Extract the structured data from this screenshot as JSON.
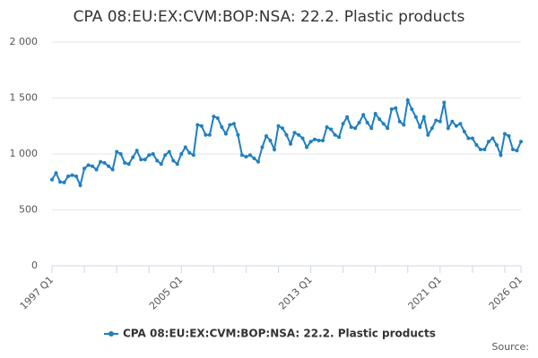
{
  "chart_data": {
    "type": "line",
    "title": "CPA 08:EU:EX:CVM:BOP:NSA: 22.2. Plastic products",
    "source": "Source:",
    "categories": [
      "1997 Q1",
      null,
      null,
      null,
      null,
      null,
      null,
      null,
      null,
      null,
      null,
      null,
      null,
      null,
      null,
      null,
      null,
      null,
      null,
      null,
      null,
      null,
      null,
      null,
      null,
      null,
      null,
      null,
      null,
      null,
      null,
      null,
      "2005 Q1",
      null,
      null,
      null,
      null,
      null,
      null,
      null,
      null,
      null,
      null,
      null,
      null,
      null,
      null,
      null,
      null,
      null,
      null,
      null,
      null,
      null,
      null,
      null,
      null,
      null,
      null,
      null,
      null,
      null,
      null,
      null,
      "2013 Q1",
      null,
      null,
      null,
      null,
      null,
      null,
      null,
      null,
      null,
      null,
      null,
      null,
      null,
      null,
      null,
      null,
      null,
      null,
      null,
      null,
      null,
      null,
      null,
      null,
      null,
      null,
      null,
      null,
      null,
      null,
      null,
      "2021 Q1",
      null,
      null,
      null,
      null,
      null,
      null,
      null,
      null,
      null,
      null,
      null,
      null,
      null,
      null,
      null,
      null,
      null,
      null,
      null,
      "2026 Q1"
    ],
    "series": [
      {
        "name": "CPA 08:EU:EX:CVM:BOP:NSA: 22.2. Plastic products",
        "color": "#1f7fc0",
        "values": [
          770,
          830,
          750,
          745,
          800,
          810,
          800,
          720,
          870,
          900,
          890,
          860,
          930,
          920,
          890,
          860,
          1020,
          1000,
          920,
          910,
          970,
          1030,
          950,
          950,
          990,
          1000,
          940,
          910,
          990,
          1020,
          940,
          910,
          1000,
          1060,
          1010,
          990,
          1260,
          1250,
          1170,
          1170,
          1335,
          1320,
          1240,
          1180,
          1260,
          1270,
          1170,
          990,
          975,
          990,
          960,
          930,
          1060,
          1160,
          1120,
          1040,
          1250,
          1230,
          1170,
          1090,
          1190,
          1170,
          1140,
          1060,
          1110,
          1130,
          1120,
          1120,
          1240,
          1220,
          1170,
          1150,
          1270,
          1330,
          1240,
          1230,
          1280,
          1350,
          1280,
          1230,
          1360,
          1310,
          1270,
          1230,
          1400,
          1410,
          1290,
          1260,
          1480,
          1400,
          1330,
          1240,
          1330,
          1170,
          1230,
          1300,
          1290,
          1460,
          1230,
          1290,
          1250,
          1270,
          1200,
          1140,
          1140,
          1080,
          1040,
          1040,
          1110,
          1140,
          1080,
          990,
          1180,
          1160,
          1040,
          1030,
          1110
        ]
      }
    ],
    "ylim": [
      0,
      2000
    ],
    "yticks": [
      0,
      500,
      {
        "value": 1000,
        "label": "1 000"
      },
      {
        "value": 1500,
        "label": "1 500"
      },
      {
        "value": 2000,
        "label": "2 000"
      }
    ],
    "grid": true
  }
}
